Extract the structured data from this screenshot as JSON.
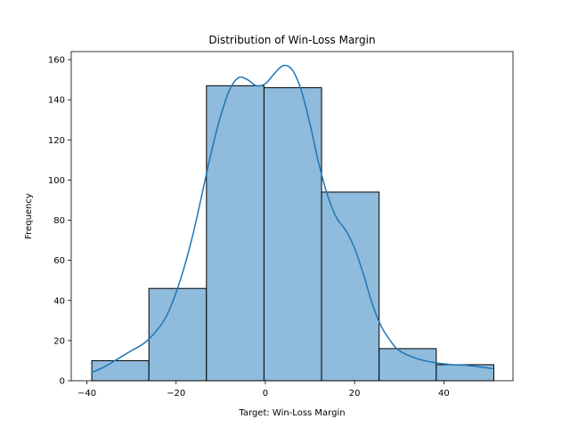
{
  "chart_data": {
    "type": "bar",
    "title": "Distribution of Win-Loss Margin",
    "xlabel": "Target: Win-Loss Margin",
    "ylabel": "Frequency",
    "xlim": [
      -43.5,
      55.5
    ],
    "ylim": [
      0,
      164
    ],
    "xticks": [
      -40,
      -20,
      0,
      20,
      40
    ],
    "yticks": [
      0,
      20,
      40,
      60,
      80,
      100,
      120,
      140,
      160
    ],
    "bins": [
      {
        "x0": -38.9,
        "x1": -26.1,
        "value": 10
      },
      {
        "x0": -26.1,
        "x1": -13.2,
        "value": 46
      },
      {
        "x0": -13.2,
        "x1": -0.3,
        "value": 147
      },
      {
        "x0": -0.3,
        "x1": 12.6,
        "value": 146
      },
      {
        "x0": 12.6,
        "x1": 25.5,
        "value": 94
      },
      {
        "x0": 25.5,
        "x1": 38.3,
        "value": 16
      },
      {
        "x0": 38.3,
        "x1": 51.2,
        "value": 8
      }
    ],
    "kde": {
      "x": [
        -39,
        -36,
        -33,
        -30,
        -27,
        -24,
        -22,
        -20,
        -18,
        -16,
        -14,
        -12,
        -10,
        -8,
        -6,
        -4,
        -2,
        0,
        2,
        4,
        6,
        8,
        10,
        12,
        14,
        16,
        18,
        20,
        22,
        24,
        26,
        28,
        30,
        34,
        38,
        42,
        46,
        51
      ],
      "y": [
        4,
        7,
        11,
        15,
        19,
        26,
        33,
        44,
        58,
        75,
        95,
        115,
        132,
        145,
        151,
        150,
        147,
        148,
        153,
        157,
        155,
        145,
        128,
        108,
        92,
        81,
        75,
        66,
        53,
        38,
        27,
        20,
        15,
        11,
        9,
        8,
        7.5,
        6
      ]
    },
    "colors": {
      "bar_fill": "#8fbbdc",
      "bar_edge": "#000000",
      "kde_line": "#1f77b4"
    },
    "grid": false,
    "legend": "none"
  }
}
